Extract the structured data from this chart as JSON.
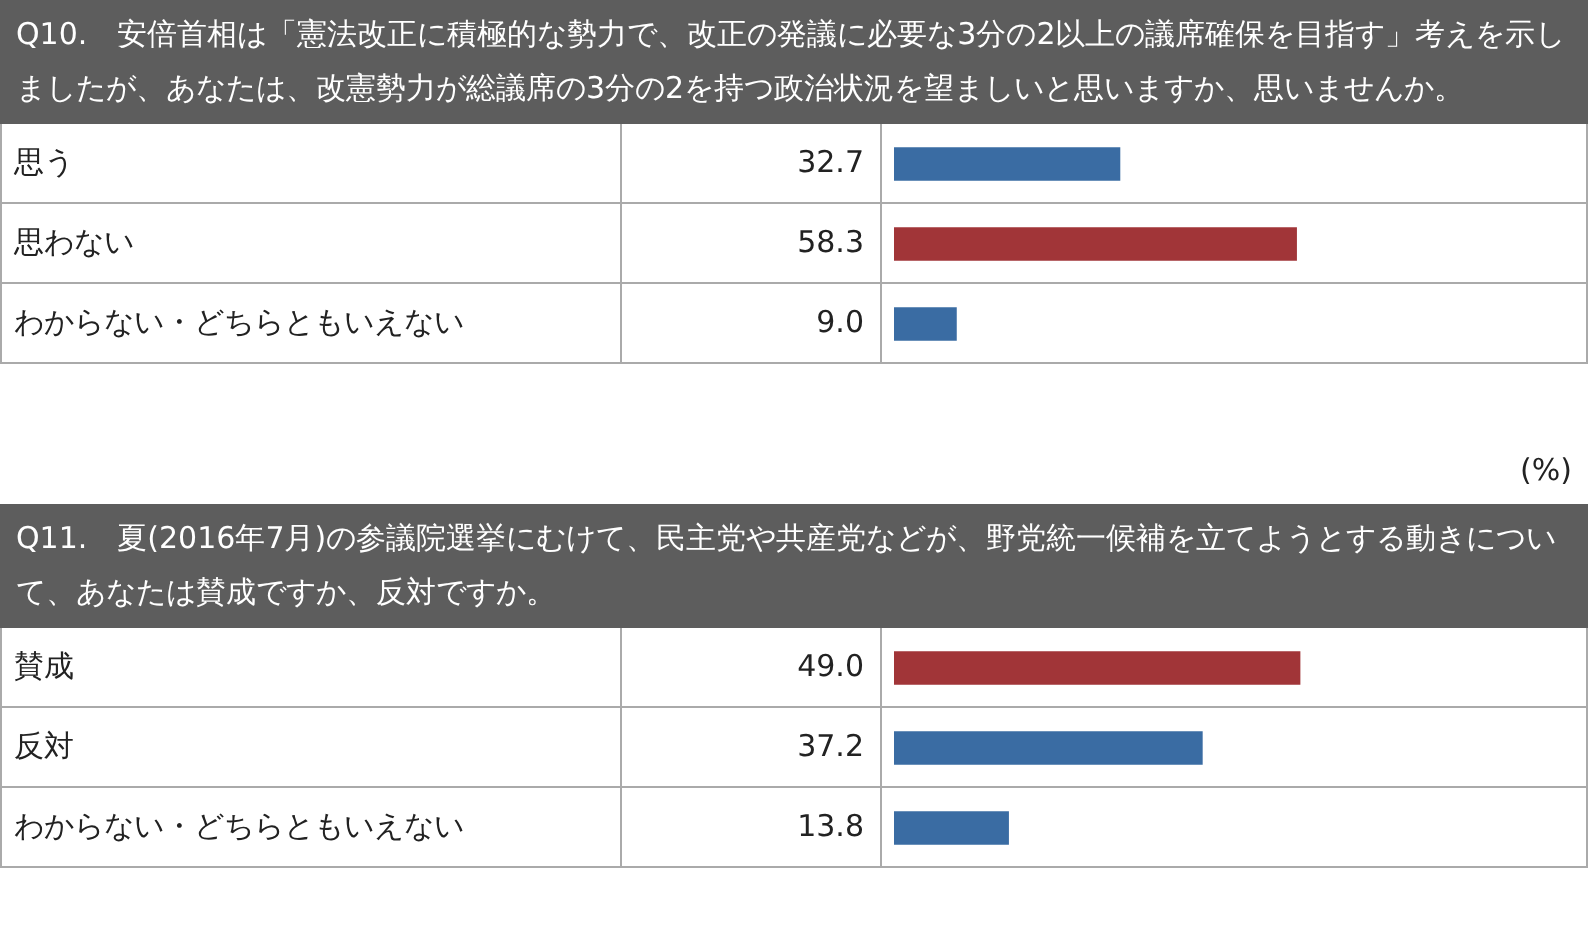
{
  "chart_data": [
    {
      "type": "bar",
      "orientation": "horizontal",
      "title": "Q10.　安倍首相は「憲法改正に積極的な勢力で、改正の発議に必要な3分の2以上の議席確保を目指す」考えを示しましたが、あなたは、改憲勢力が総議席の3分の2を持つ政治状況を望ましいと思いますか、思いませんか。",
      "categories": [
        "思う",
        "思わない",
        "わからない・どちらともいえない"
      ],
      "values": [
        32.7,
        58.3,
        9.0
      ],
      "value_labels": [
        "32.7",
        "58.3",
        "9.0"
      ],
      "colors": [
        "#3a6ca3",
        "#a13538",
        "#3a6ca3"
      ]
    },
    {
      "type": "bar",
      "orientation": "horizontal",
      "title": "Q11.　夏(2016年7月)の参議院選挙にむけて、民主党や共産党などが、野党統一候補を立てようとする動きについて、あなたは賛成ですか、反対ですか。",
      "annotations": [
        "(%)"
      ],
      "categories": [
        "賛成",
        "反対",
        "わからない・どちらともいえない"
      ],
      "values": [
        49.0,
        37.2,
        13.8
      ],
      "value_labels": [
        "49.0",
        "37.2",
        "13.8"
      ],
      "colors": [
        "#a13538",
        "#3a6ca3",
        "#3a6ca3"
      ]
    }
  ]
}
